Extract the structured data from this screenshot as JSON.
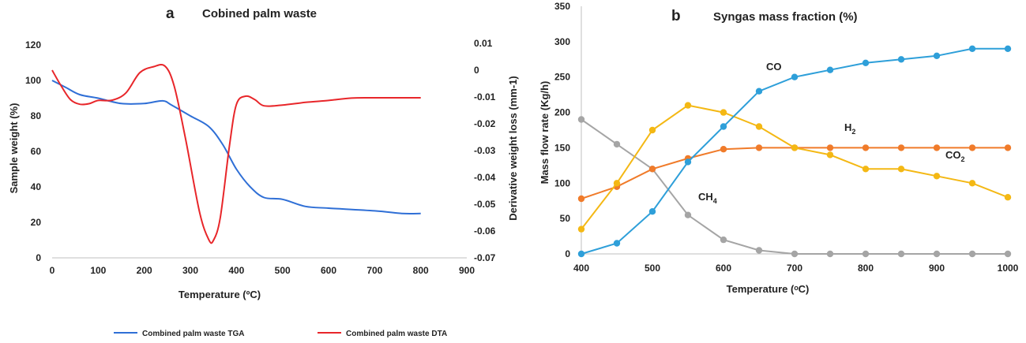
{
  "chart_data": [
    {
      "panel_letter": "a",
      "type": "line",
      "title": "Cobined palm waste",
      "xlabel": "Temperature (ºC)",
      "ylabel": "Sample weight (%)",
      "ylabel_right": "Derivative weight loss (mm-1)",
      "xlim": [
        0,
        900
      ],
      "ylim": [
        0,
        120
      ],
      "ylim_right": [
        -0.07,
        0.01
      ],
      "x_ticks": [
        "0",
        "100",
        "200",
        "300",
        "400",
        "500",
        "600",
        "700",
        "800",
        "900"
      ],
      "y_ticks": [
        "0",
        "20",
        "40",
        "60",
        "80",
        "100",
        "120"
      ],
      "y_right_ticks": [
        "0.01",
        "0",
        "-0.01",
        "-0.02",
        "-0.03",
        "-0.04",
        "-0.05",
        "-0.06",
        "-0.07"
      ],
      "legend_position": "bottom",
      "series": [
        {
          "name": "Combined palm waste TGA",
          "axis": "left",
          "color": "#2f6fd6",
          "x": [
            0,
            30,
            60,
            100,
            150,
            200,
            240,
            260,
            300,
            340,
            370,
            400,
            430,
            460,
            500,
            550,
            600,
            700,
            760,
            800
          ],
          "y": [
            100,
            96,
            92,
            90,
            87,
            87,
            88.5,
            86,
            80,
            74,
            64,
            50,
            40,
            34,
            33,
            29,
            28,
            26.5,
            25,
            25
          ]
        },
        {
          "name": "Combined palm waste DTA",
          "axis": "right",
          "color": "#e8262a",
          "x": [
            0,
            20,
            40,
            60,
            80,
            100,
            130,
            160,
            190,
            220,
            245,
            265,
            290,
            320,
            340,
            350,
            365,
            385,
            400,
            420,
            440,
            460,
            500,
            550,
            600,
            650,
            700,
            800
          ],
          "y": [
            0.0,
            -0.006,
            -0.011,
            -0.0127,
            -0.0125,
            -0.0113,
            -0.0112,
            -0.0085,
            -0.001,
            0.0013,
            0.0015,
            -0.006,
            -0.026,
            -0.053,
            -0.0632,
            -0.0635,
            -0.055,
            -0.028,
            -0.0128,
            -0.0097,
            -0.011,
            -0.0133,
            -0.013,
            -0.012,
            -0.0113,
            -0.0104,
            -0.0103,
            -0.0103
          ]
        }
      ]
    },
    {
      "panel_letter": "b",
      "type": "line",
      "title": "Syngas mass fraction (%)",
      "xlabel": "Temperature (ᵒC)",
      "ylabel": "Mass flow rate (Kg/h)",
      "xlim": [
        400,
        1000
      ],
      "ylim": [
        0,
        350
      ],
      "x_ticks": [
        "400",
        "500",
        "600",
        "700",
        "800",
        "900",
        "1000"
      ],
      "y_ticks": [
        "0",
        "50",
        "100",
        "150",
        "200",
        "250",
        "300",
        "350"
      ],
      "x": [
        400,
        450,
        500,
        550,
        600,
        650,
        700,
        750,
        800,
        850,
        900,
        950,
        1000
      ],
      "series": [
        {
          "name": "CO",
          "color": "#2e9fd9",
          "values": [
            0,
            15,
            60,
            130,
            180,
            230,
            250,
            260,
            270,
            275,
            280,
            290,
            290
          ]
        },
        {
          "name": "H",
          "sub": "2",
          "color": "#f4b814",
          "values": [
            35,
            100,
            175,
            210,
            200,
            180,
            150,
            140,
            120,
            120,
            110,
            100,
            80
          ]
        },
        {
          "name": "CO",
          "sub": "2",
          "color": "#f07b2a",
          "values": [
            78,
            95,
            120,
            135,
            148,
            150,
            150,
            150,
            150,
            150,
            150,
            150,
            150
          ]
        },
        {
          "name": "CH",
          "sub": "4",
          "color": "#a5a5a5",
          "values": [
            190,
            155,
            120,
            55,
            20,
            5,
            0,
            0,
            0,
            0,
            0,
            0,
            0
          ]
        }
      ]
    }
  ]
}
